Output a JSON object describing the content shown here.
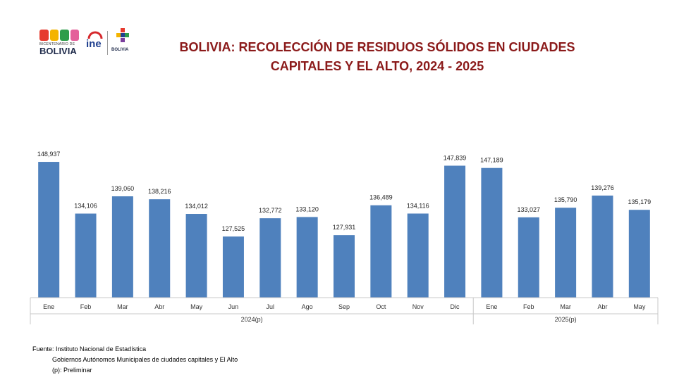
{
  "logos": {
    "bicentenario_small": "BICENTENARIO DE",
    "bicentenario_big": "BOLIVIA",
    "ine_text": "ine",
    "estado_text": "BOLIVIA"
  },
  "title_line1": "BOLIVIA: RECOLECCIÓN DE RESIDUOS SÓLIDOS EN CIUDADES",
  "title_line2": "CAPITALES Y EL ALTO, 2024 - 2025",
  "colors": {
    "bar": "#4f81bd",
    "title": "#8b1a1a",
    "axis": "#c8c8c8"
  },
  "chart_data": {
    "type": "bar",
    "groups": [
      {
        "label": "2024(p)",
        "categories": [
          "Ene",
          "Feb",
          "Mar",
          "Abr",
          "May",
          "Jun",
          "Jul",
          "Ago",
          "Sep",
          "Oct",
          "Nov",
          "Dic"
        ]
      },
      {
        "label": "2025(p)",
        "categories": [
          "Ene",
          "Feb",
          "Mar",
          "Abr",
          "May"
        ]
      }
    ],
    "values": [
      148937,
      134106,
      139060,
      138216,
      134012,
      127525,
      132772,
      133120,
      127931,
      136489,
      134116,
      147839,
      147189,
      133027,
      135790,
      139276,
      135179
    ],
    "labels": [
      "148,937",
      "134,106",
      "139,060",
      "138,216",
      "134,012",
      "127,525",
      "132,772",
      "133,120",
      "127,931",
      "136,489",
      "134,116",
      "147,839",
      "147,189",
      "133,027",
      "135,790",
      "139,276",
      "135,179"
    ],
    "ylim": [
      110000,
      155000
    ],
    "grid": false,
    "legend": "none"
  },
  "footer": {
    "line1": "Fuente:  Instituto Nacional de Estadística",
    "line2": "Gobiernos Autónomos Municipales de ciudades capitales y El Alto",
    "line3": "(p): Preliminar"
  }
}
